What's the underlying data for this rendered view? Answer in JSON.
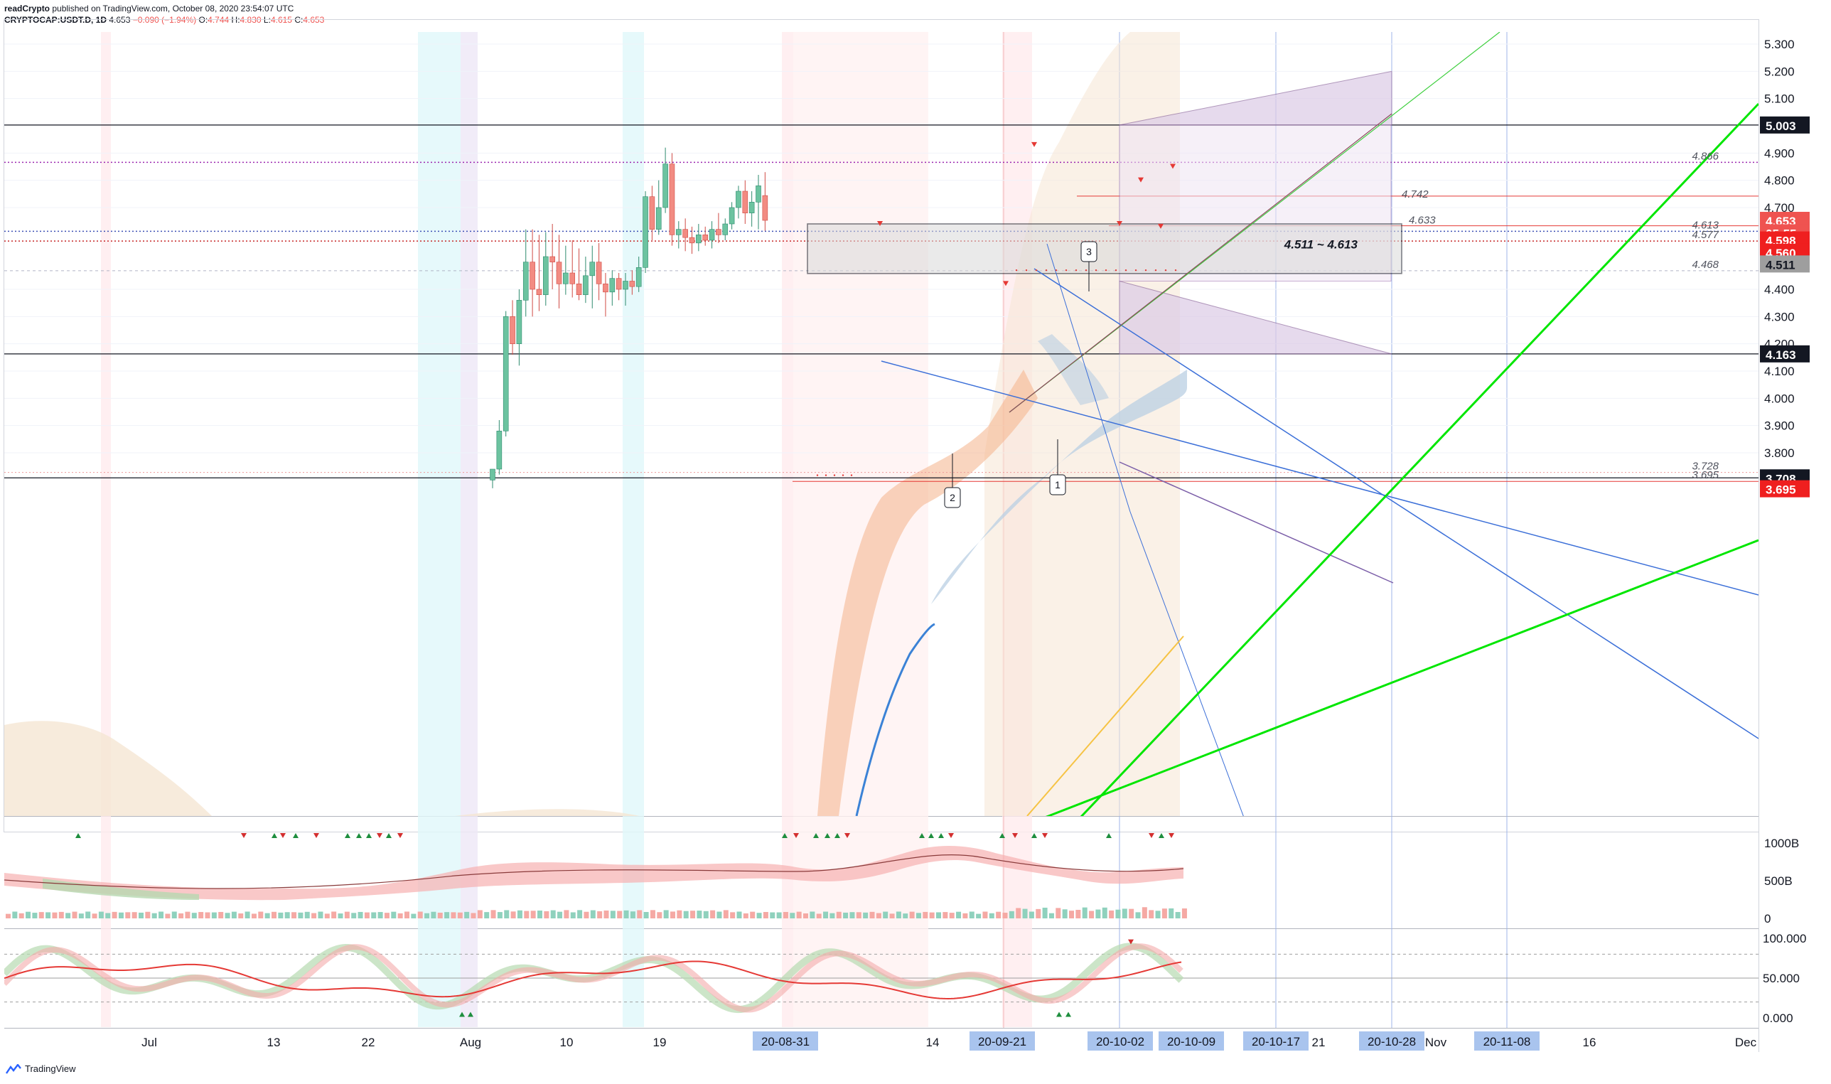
{
  "header": {
    "publisher": "readCrypto",
    "published_text": "published on TradingView.com, October 08, 2020 23:54:07 UTC",
    "symbol": "CRYPTOCAP:USDT.D, 1D",
    "last": "4.653",
    "change": "−0.090 (−1.94%)",
    "open_label": "O:",
    "open": "4.744",
    "high_label": "H:",
    "high": "4.830",
    "low_label": "L:",
    "low": "4.615",
    "close_label": "C:",
    "close": "4.653"
  },
  "brand": {
    "label": "TradingView",
    "icon": "tradingview-logo-icon"
  },
  "colors": {
    "up": "#26a69a",
    "down": "#ef5350",
    "green_line": "#00e600",
    "blue_line": "#3b6fd8",
    "purple_dot": "#9c27b0",
    "box_fill": "#d9d9d9",
    "cloud": "#f5e6d3",
    "ribbon": "#b9cfe3"
  },
  "chart_data": [
    {
      "type": "candlestick",
      "name": "main",
      "y_axis": {
        "scale": "linear",
        "ticks": [
          "5.300",
          "5.200",
          "5.100",
          "4.900",
          "4.800",
          "4.700",
          "4.400",
          "4.300",
          "4.200",
          "4.100",
          "4.000",
          "3.900",
          "3.800"
        ],
        "range": [
          3.67,
          5.41
        ]
      },
      "x_axis": {
        "ticks": [
          "Jul",
          "13",
          "22",
          "Aug",
          "10",
          "19",
          "14",
          "21",
          "Nov",
          "16",
          "Dec"
        ],
        "highlighted_dates": [
          "20-08-31",
          "20-09-21",
          "20-10-02",
          "20-10-09",
          "20-10-17",
          "20-10-28",
          "20-11-08"
        ]
      },
      "candles": [
        {
          "date": "08-29",
          "o": 3.7,
          "h": 3.74,
          "l": 3.67,
          "c": 3.74
        },
        {
          "date": "08-30",
          "o": 3.74,
          "h": 3.92,
          "l": 3.72,
          "c": 3.88
        },
        {
          "date": "08-31",
          "o": 3.88,
          "h": 4.32,
          "l": 3.86,
          "c": 4.3
        },
        {
          "date": "09-01",
          "o": 4.3,
          "h": 4.36,
          "l": 4.16,
          "c": 4.2
        },
        {
          "date": "09-02",
          "o": 4.2,
          "h": 4.4,
          "l": 4.12,
          "c": 4.36
        },
        {
          "date": "09-03",
          "o": 4.36,
          "h": 4.62,
          "l": 4.3,
          "c": 4.5
        },
        {
          "date": "09-04",
          "o": 4.5,
          "h": 4.62,
          "l": 4.3,
          "c": 4.4
        },
        {
          "date": "09-05",
          "o": 4.4,
          "h": 4.6,
          "l": 4.32,
          "c": 4.38
        },
        {
          "date": "09-06",
          "o": 4.38,
          "h": 4.61,
          "l": 4.34,
          "c": 4.52
        },
        {
          "date": "09-07",
          "o": 4.52,
          "h": 4.64,
          "l": 4.4,
          "c": 4.5
        },
        {
          "date": "09-08",
          "o": 4.5,
          "h": 4.6,
          "l": 4.33,
          "c": 4.42
        },
        {
          "date": "09-09",
          "o": 4.42,
          "h": 4.56,
          "l": 4.38,
          "c": 4.46
        },
        {
          "date": "09-10",
          "o": 4.46,
          "h": 4.58,
          "l": 4.37,
          "c": 4.42
        },
        {
          "date": "09-11",
          "o": 4.42,
          "h": 4.55,
          "l": 4.36,
          "c": 4.38
        },
        {
          "date": "09-12",
          "o": 4.38,
          "h": 4.52,
          "l": 4.35,
          "c": 4.45
        },
        {
          "date": "09-13",
          "o": 4.45,
          "h": 4.56,
          "l": 4.33,
          "c": 4.5
        },
        {
          "date": "09-14",
          "o": 4.5,
          "h": 4.57,
          "l": 4.36,
          "c": 4.42
        },
        {
          "date": "09-15",
          "o": 4.42,
          "h": 4.46,
          "l": 4.3,
          "c": 4.39
        },
        {
          "date": "09-16",
          "o": 4.39,
          "h": 4.47,
          "l": 4.34,
          "c": 4.44
        },
        {
          "date": "09-17",
          "o": 4.44,
          "h": 4.46,
          "l": 4.36,
          "c": 4.4
        },
        {
          "date": "09-18",
          "o": 4.4,
          "h": 4.46,
          "l": 4.34,
          "c": 4.43
        },
        {
          "date": "09-19",
          "o": 4.43,
          "h": 4.47,
          "l": 4.38,
          "c": 4.41
        },
        {
          "date": "09-20",
          "o": 4.41,
          "h": 4.52,
          "l": 4.39,
          "c": 4.48
        },
        {
          "date": "09-21",
          "o": 4.48,
          "h": 4.76,
          "l": 4.46,
          "c": 4.74
        },
        {
          "date": "09-22",
          "o": 4.74,
          "h": 4.78,
          "l": 4.58,
          "c": 4.62
        },
        {
          "date": "09-23",
          "o": 4.62,
          "h": 4.8,
          "l": 4.6,
          "c": 4.7
        },
        {
          "date": "09-24",
          "o": 4.7,
          "h": 4.92,
          "l": 4.68,
          "c": 4.86
        },
        {
          "date": "09-25",
          "o": 4.86,
          "h": 4.9,
          "l": 4.56,
          "c": 4.6
        },
        {
          "date": "09-26",
          "o": 4.6,
          "h": 4.65,
          "l": 4.55,
          "c": 4.62
        },
        {
          "date": "09-27",
          "o": 4.62,
          "h": 4.66,
          "l": 4.54,
          "c": 4.59
        },
        {
          "date": "09-28",
          "o": 4.59,
          "h": 4.63,
          "l": 4.53,
          "c": 4.57
        },
        {
          "date": "09-29",
          "o": 4.57,
          "h": 4.64,
          "l": 4.54,
          "c": 4.6
        },
        {
          "date": "09-30",
          "o": 4.6,
          "h": 4.63,
          "l": 4.56,
          "c": 4.58
        },
        {
          "date": "10-01",
          "o": 4.58,
          "h": 4.65,
          "l": 4.55,
          "c": 4.62
        },
        {
          "date": "10-02",
          "o": 4.62,
          "h": 4.68,
          "l": 4.57,
          "c": 4.6
        },
        {
          "date": "10-03",
          "o": 4.6,
          "h": 4.66,
          "l": 4.58,
          "c": 4.64
        },
        {
          "date": "10-04",
          "o": 4.64,
          "h": 4.72,
          "l": 4.62,
          "c": 4.7
        },
        {
          "date": "10-05",
          "o": 4.7,
          "h": 4.78,
          "l": 4.66,
          "c": 4.76
        },
        {
          "date": "10-06",
          "o": 4.76,
          "h": 4.8,
          "l": 4.64,
          "c": 4.68
        },
        {
          "date": "10-07",
          "o": 4.68,
          "h": 4.76,
          "l": 4.63,
          "c": 4.72
        },
        {
          "date": "10-08",
          "o": 4.72,
          "h": 4.82,
          "l": 4.62,
          "c": 4.78
        },
        {
          "date": "10-09",
          "o": 4.744,
          "h": 4.83,
          "l": 4.615,
          "c": 4.653
        }
      ],
      "price_labels": {
        "current": "4.653",
        "countdown": "05:55",
        "boxes": [
          "5.003",
          "4.598",
          "4.560",
          "4.511",
          "4.163",
          "3.708",
          "3.695"
        ],
        "line_labels": [
          "4.866",
          "4.742",
          "4.633",
          "4.613",
          "4.577",
          "4.468",
          "3.728",
          "3.695"
        ]
      },
      "levels": {
        "hline_upper": 5.003,
        "hline_mid": 4.163,
        "hline_low": 3.708,
        "dotted_top": 4.866,
        "dotted_mid": 4.613,
        "dotted_low": 4.577
      },
      "zone": {
        "label": "4.511 ~ 4.613",
        "low": 4.511,
        "high": 4.613
      },
      "callouts": [
        "1",
        "2",
        "3"
      ]
    },
    {
      "type": "area",
      "name": "volume-panel",
      "y_ticks": [
        "1000B",
        "500B",
        "0"
      ]
    },
    {
      "type": "line",
      "name": "oscillator-panel",
      "y_ticks": [
        "100.000",
        "50.000",
        "0.000"
      ]
    }
  ]
}
